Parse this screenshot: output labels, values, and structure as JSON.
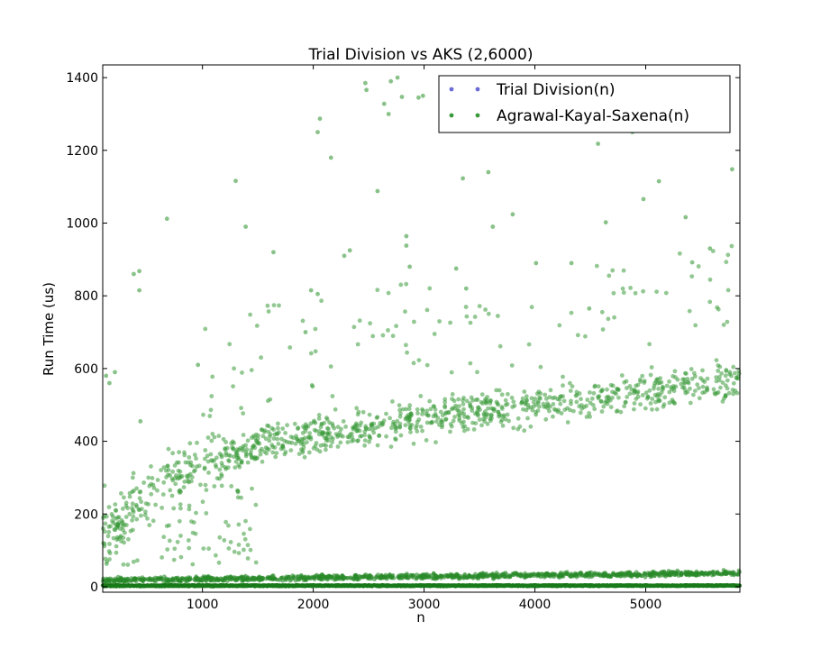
{
  "chart_data": {
    "type": "scatter",
    "title": "Trial Division vs AKS (2,6000)",
    "xlabel": "n",
    "ylabel": "Run Time (us)",
    "xlim": [
      100,
      5850
    ],
    "ylim": [
      -15,
      1435
    ],
    "x_ticks": [
      1000,
      2000,
      3000,
      4000,
      5000
    ],
    "y_ticks": [
      0,
      200,
      400,
      600,
      800,
      1000,
      1200,
      1400
    ],
    "grid": false,
    "legend_position": "top-right",
    "series": [
      {
        "name": "Trial Division(n)",
        "color": "#6b6bd6",
        "trend": "near-constant baseline around 0-4 us across all n",
        "points": [
          [
            150,
            2
          ],
          [
            500,
            2
          ],
          [
            1000,
            3
          ],
          [
            1500,
            3
          ],
          [
            2000,
            3
          ],
          [
            2500,
            3
          ],
          [
            3000,
            4
          ],
          [
            3500,
            4
          ],
          [
            4000,
            4
          ],
          [
            4500,
            4
          ],
          [
            5000,
            4
          ],
          [
            5500,
            4
          ],
          [
            5800,
            4
          ]
        ]
      },
      {
        "name": "Agrawal-Kayal-Saxena(n)",
        "color": "#3a9a3a",
        "bands": {
          "baseline": {
            "from": [
              100,
              2
            ],
            "to": [
              5850,
              3
            ]
          },
          "low": {
            "from": [
              100,
              18
            ],
            "to": [
              5850,
              38
            ]
          },
          "main": [
            [
              100,
              130
            ],
            [
              700,
              300
            ],
            [
              1500,
              390
            ],
            [
              2500,
              440
            ],
            [
              3500,
              480
            ],
            [
              4500,
              520
            ],
            [
              5850,
              570
            ]
          ]
        },
        "outliers": [
          [
            130,
            580
          ],
          [
            160,
            560
          ],
          [
            430,
            868
          ],
          [
            430,
            815
          ],
          [
            440,
            455
          ],
          [
            680,
            1012
          ],
          [
            960,
            610
          ],
          [
            1300,
            1116
          ],
          [
            1390,
            990
          ],
          [
            1640,
            920
          ],
          [
            2040,
            1250
          ],
          [
            2060,
            1287
          ],
          [
            2160,
            1180
          ],
          [
            2280,
            910
          ],
          [
            2330,
            925
          ],
          [
            2470,
            1385
          ],
          [
            2480,
            1366
          ],
          [
            2580,
            1088
          ],
          [
            2640,
            1328
          ],
          [
            2680,
            1300
          ],
          [
            2700,
            1390
          ],
          [
            2760,
            1400
          ],
          [
            2800,
            1347
          ],
          [
            2840,
            938
          ],
          [
            2840,
            964
          ],
          [
            2950,
            1345
          ],
          [
            2990,
            1350
          ],
          [
            3350,
            1123
          ],
          [
            3380,
            820
          ],
          [
            3580,
            1140
          ],
          [
            3620,
            990
          ],
          [
            3800,
            1024
          ],
          [
            4010,
            890
          ],
          [
            4330,
            890
          ],
          [
            4490,
            765
          ],
          [
            4570,
            1218
          ],
          [
            4640,
            1002
          ],
          [
            4880,
            1250
          ],
          [
            4980,
            1066
          ],
          [
            5120,
            1115
          ],
          [
            5360,
            1016
          ],
          [
            5420,
            892
          ],
          [
            5580,
            930
          ],
          [
            5780,
            1148
          ],
          [
            1980,
            815
          ],
          [
            2040,
            805
          ],
          [
            1930,
            700
          ],
          [
            2870,
            880
          ],
          [
            3290,
            875
          ],
          [
            210,
            590
          ],
          [
            380,
            860
          ]
        ]
      }
    ]
  }
}
